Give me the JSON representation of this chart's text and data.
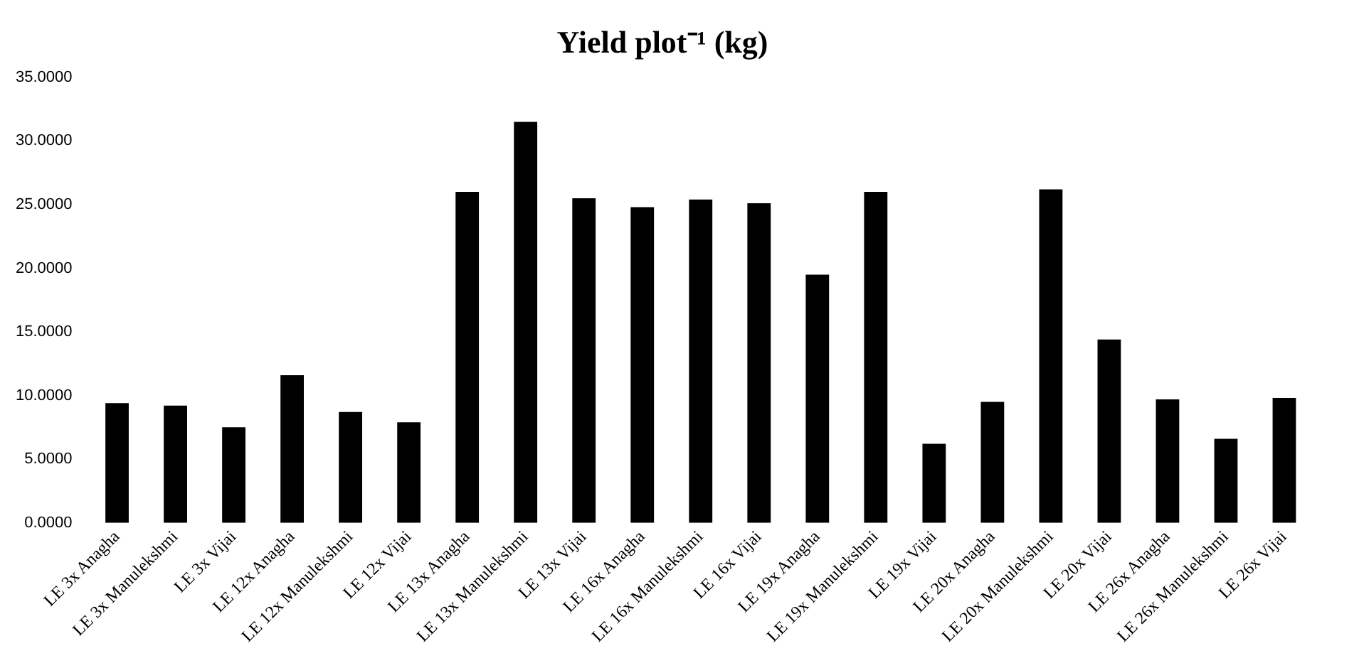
{
  "chart_data": {
    "type": "bar",
    "title": "Yield plot⁻¹ (kg)",
    "categories": [
      "LE 3x Anagha",
      "LE 3x Manulekshmi",
      "LE 3x Vijai",
      "LE 12x Anagha",
      "LE 12x Manulekshmi",
      "LE 12x Vijai",
      "LE 13x Anagha",
      "LE 13x Manulekshmi",
      "LE 13x Vijai",
      "LE 16x Anagha",
      "LE 16x Manulekshmi",
      "LE 16x Vijai",
      "LE 19x Anagha",
      "LE 19x Manulekshmi",
      "LE 19x Vijai",
      "LE 20x Anagha",
      "LE 20x Manulekshmi",
      "LE 20x Vijai",
      "LE 26x Anagha",
      "LE 26x Manulekshmi",
      "LE 26x Vijai"
    ],
    "values": [
      9.4,
      9.2,
      7.5,
      11.6,
      8.7,
      7.9,
      26.0,
      31.5,
      25.5,
      24.8,
      25.4,
      25.1,
      19.5,
      26.0,
      6.2,
      9.5,
      26.2,
      14.4,
      9.7,
      6.6,
      9.8
    ],
    "color": "#000000",
    "ylim": [
      0,
      35
    ],
    "yticks": [
      {
        "value": 0,
        "label": "0.0000"
      },
      {
        "value": 5,
        "label": "5.0000"
      },
      {
        "value": 10,
        "label": "10.0000"
      },
      {
        "value": 15,
        "label": "15.0000"
      },
      {
        "value": 20,
        "label": "20.0000"
      },
      {
        "value": 25,
        "label": "25.0000"
      },
      {
        "value": 30,
        "label": "30.0000"
      },
      {
        "value": 35,
        "label": "35.0000"
      }
    ],
    "grid": false,
    "legend": false
  }
}
